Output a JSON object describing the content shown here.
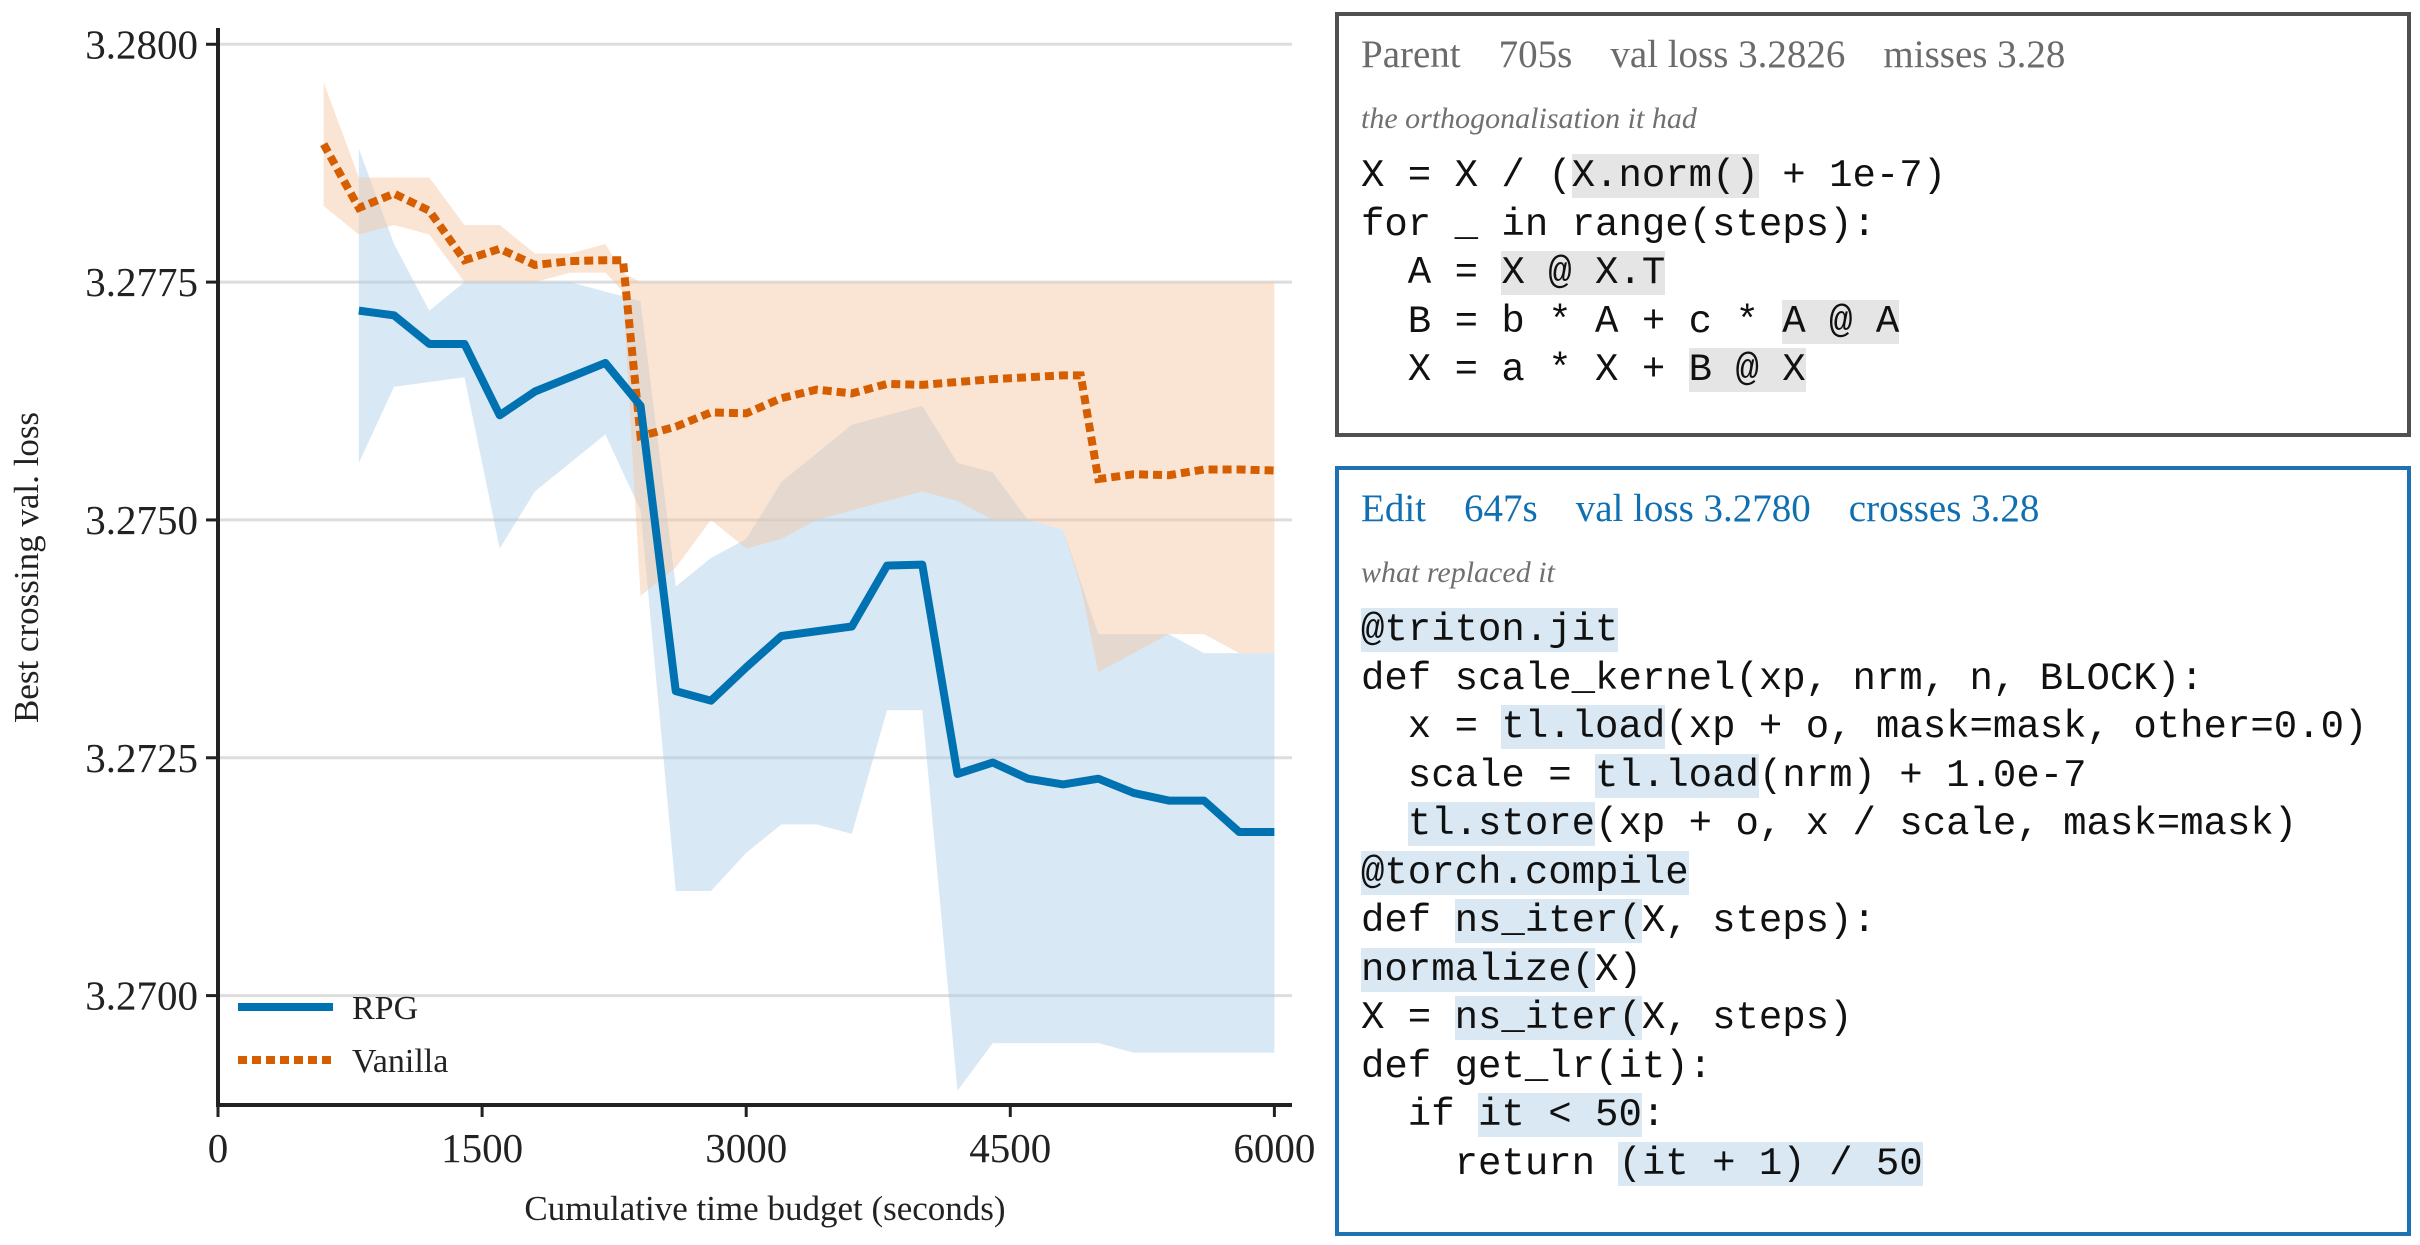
{
  "chart_data": {
    "type": "line",
    "ylabel": "Best crossing val. loss",
    "xlabel": "Cumulative time budget (seconds)",
    "xlim": [
      0,
      6100
    ],
    "ylim": [
      3.26885,
      3.28015
    ],
    "xticks": [
      0,
      1500,
      3000,
      4500,
      6000
    ],
    "xtick_labels": [
      "0",
      "1500",
      "3000",
      "4500",
      "6000"
    ],
    "yticks": [
      3.27,
      3.2725,
      3.275,
      3.2775,
      3.28
    ],
    "ytick_labels": [
      "3.2700",
      "3.2725",
      "3.2750",
      "3.2775",
      "3.2800"
    ],
    "grid": "horizontal",
    "legend_position": "lower-left",
    "series": [
      {
        "name": "RPG",
        "color": "#0072b2",
        "style": "solid",
        "x": [
          800,
          1000,
          1200,
          1400,
          1600,
          1800,
          2000,
          2200,
          2400,
          2600,
          2800,
          3000,
          3200,
          3400,
          3600,
          3800,
          4000,
          4200,
          4400,
          4600,
          4800,
          5000,
          5200,
          5400,
          5600,
          5800,
          6000
        ],
        "y": [
          3.2772,
          3.27715,
          3.27685,
          3.27685,
          3.2761,
          3.27635,
          3.2765,
          3.27665,
          3.2762,
          3.2732,
          3.2731,
          3.27345,
          3.27378,
          3.27383,
          3.27388,
          3.27452,
          3.27453,
          3.27233,
          3.27245,
          3.27228,
          3.27222,
          3.27228,
          3.27213,
          3.27205,
          3.27205,
          3.27172,
          3.27172
        ],
        "band_lower": [
          3.2756,
          3.2764,
          3.27645,
          3.2765,
          3.2747,
          3.2753,
          3.2756,
          3.2759,
          3.2751,
          3.2711,
          3.2711,
          3.2715,
          3.2718,
          3.2718,
          3.2717,
          3.273,
          3.273,
          3.269,
          3.2695,
          3.2695,
          3.2695,
          3.2695,
          3.2694,
          3.2694,
          3.2694,
          3.2694,
          3.2694
        ],
        "band_upper": [
          3.2789,
          3.2779,
          3.2772,
          3.2775,
          3.2775,
          3.2775,
          3.2775,
          3.2774,
          3.2773,
          3.2743,
          3.2746,
          3.2748,
          3.2754,
          3.2757,
          3.276,
          3.2761,
          3.2762,
          3.2756,
          3.2755,
          3.275,
          3.2749,
          3.2738,
          3.2738,
          3.2738,
          3.2736,
          3.2736,
          3.2736
        ]
      },
      {
        "name": "Vanilla",
        "color": "#d55e00",
        "style": "dotted",
        "x": [
          600,
          800,
          1000,
          1200,
          1400,
          1600,
          1800,
          2000,
          2200,
          2300,
          2400,
          2600,
          2800,
          3000,
          3200,
          3400,
          3600,
          3800,
          4000,
          4200,
          4400,
          4600,
          4800,
          4900,
          5000,
          5200,
          5400,
          5600,
          5800,
          6000
        ],
        "y": [
          3.27895,
          3.27828,
          3.27843,
          3.27825,
          3.27773,
          3.27785,
          3.27768,
          3.27772,
          3.27773,
          3.27773,
          3.27588,
          3.27598,
          3.27613,
          3.27612,
          3.27628,
          3.27637,
          3.27633,
          3.27643,
          3.27642,
          3.27645,
          3.27648,
          3.2765,
          3.27652,
          3.27652,
          3.27543,
          3.27548,
          3.27547,
          3.27553,
          3.27553,
          3.27552
        ],
        "band_lower": [
          3.2783,
          3.278,
          3.2781,
          3.278,
          3.2775,
          3.2775,
          3.2775,
          3.2776,
          3.2776,
          3.2774,
          3.2742,
          3.2745,
          3.275,
          3.2747,
          3.2748,
          3.275,
          3.2751,
          3.2752,
          3.2753,
          3.2752,
          3.275,
          3.275,
          3.2749,
          3.2743,
          3.2734,
          3.2736,
          3.2738,
          3.2738,
          3.2736,
          3.2736
        ],
        "band_upper": [
          3.2796,
          3.2786,
          3.2786,
          3.2786,
          3.2781,
          3.2781,
          3.2778,
          3.2778,
          3.2779,
          3.2776,
          3.2775,
          3.2775,
          3.2775,
          3.2775,
          3.2775,
          3.2775,
          3.2775,
          3.2775,
          3.2775,
          3.2775,
          3.2775,
          3.2775,
          3.2775,
          3.2775,
          3.2775,
          3.2775,
          3.2775,
          3.2775,
          3.2775,
          3.2775
        ]
      }
    ]
  },
  "parent_panel": {
    "title": "Parent",
    "time": "705s",
    "loss": "val loss 3.2826",
    "status": "misses 3.28",
    "subtitle": "the orthogonalisation it had",
    "lines": [
      [
        {
          "t": "X = X / ("
        },
        {
          "t": "X.norm()",
          "hl": "grey"
        },
        {
          "t": " + 1e-7)"
        }
      ],
      [
        {
          "t": "for _ in range(steps):"
        }
      ],
      [
        {
          "t": "  A = "
        },
        {
          "t": "X @ X.T",
          "hl": "grey"
        }
      ],
      [
        {
          "t": "  B = b * A + c * "
        },
        {
          "t": "A @ A",
          "hl": "grey"
        }
      ],
      [
        {
          "t": "  X = a * X + "
        },
        {
          "t": "B @ X",
          "hl": "grey"
        }
      ]
    ]
  },
  "edit_panel": {
    "title": "Edit",
    "time": "647s",
    "loss": "val loss 3.2780",
    "status": "crosses 3.28",
    "subtitle": "what replaced it",
    "lines": [
      [
        {
          "t": "@triton.jit",
          "hl": "blue"
        }
      ],
      [
        {
          "t": "def scale_kernel(xp, nrm, n, BLOCK):"
        }
      ],
      [
        {
          "t": "  x = "
        },
        {
          "t": "tl.load",
          "hl": "blue"
        },
        {
          "t": "(xp + o, mask=mask, other=0.0)"
        }
      ],
      [
        {
          "t": "  scale = "
        },
        {
          "t": "tl.load",
          "hl": "blue"
        },
        {
          "t": "(nrm) + 1.0e-7"
        }
      ],
      [
        {
          "t": "  "
        },
        {
          "t": "tl.store",
          "hl": "blue"
        },
        {
          "t": "(xp + o, x / scale, mask=mask)"
        }
      ],
      [
        {
          "t": "@torch.compile",
          "hl": "blue"
        }
      ],
      [
        {
          "t": "def "
        },
        {
          "t": "ns_iter(",
          "hl": "blue"
        },
        {
          "t": "X, steps):"
        }
      ],
      [
        {
          "t": "normalize(",
          "hl": "blue"
        },
        {
          "t": "X)"
        }
      ],
      [
        {
          "t": "X = "
        },
        {
          "t": "ns_iter(",
          "hl": "blue"
        },
        {
          "t": "X, steps)"
        }
      ],
      [
        {
          "t": "def get_lr(it):"
        }
      ],
      [
        {
          "t": "  if "
        },
        {
          "t": "it < 50",
          "hl": "blue"
        },
        {
          "t": ":"
        }
      ],
      [
        {
          "t": "    return "
        },
        {
          "t": "(it + 1) / 50",
          "hl": "blue"
        }
      ]
    ]
  }
}
